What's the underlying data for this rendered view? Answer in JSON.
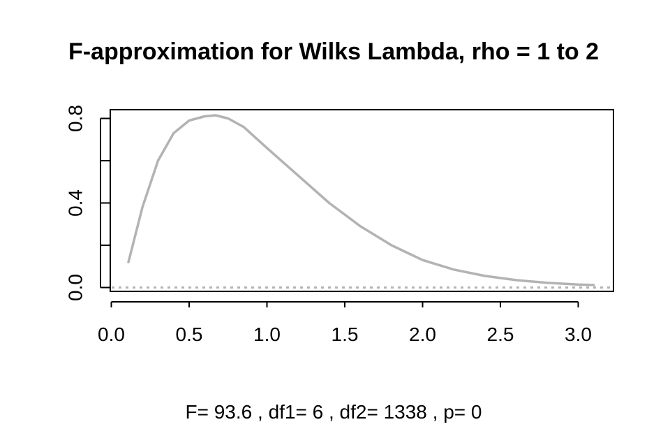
{
  "chart_data": {
    "type": "line",
    "title": "F-approximation for Wilks Lambda, rho = 1 to 2",
    "xlabel": "F= 93.6 , df1= 6 , df2= 1338 , p= 0",
    "ylabel": "",
    "xlim": [
      0.0,
      3.25
    ],
    "ylim": [
      0.0,
      0.85
    ],
    "x_ticks": [
      "0.0",
      "0.5",
      "1.0",
      "1.5",
      "2.0",
      "2.5",
      "3.0"
    ],
    "y_ticks": [
      "0.0",
      "0.4",
      "0.8"
    ],
    "y_minor_ticks": [
      0.2,
      0.6
    ],
    "grid": false,
    "series": [
      {
        "color": "#b3b3b3",
        "style": "solid",
        "x": [
          0.11,
          0.2,
          0.3,
          0.4,
          0.5,
          0.6,
          0.67,
          0.75,
          0.85,
          1.0,
          1.2,
          1.4,
          1.6,
          1.8,
          2.0,
          2.2,
          2.4,
          2.6,
          2.8,
          3.0,
          3.1
        ],
        "y": [
          0.12,
          0.38,
          0.6,
          0.73,
          0.79,
          0.81,
          0.815,
          0.8,
          0.76,
          0.66,
          0.53,
          0.4,
          0.29,
          0.2,
          0.13,
          0.085,
          0.055,
          0.035,
          0.022,
          0.014,
          0.012
        ]
      },
      {
        "color": "#b3b3b3",
        "style": "dotted",
        "x": [
          0.0,
          3.25
        ],
        "y": [
          0.0,
          0.0
        ]
      }
    ]
  }
}
